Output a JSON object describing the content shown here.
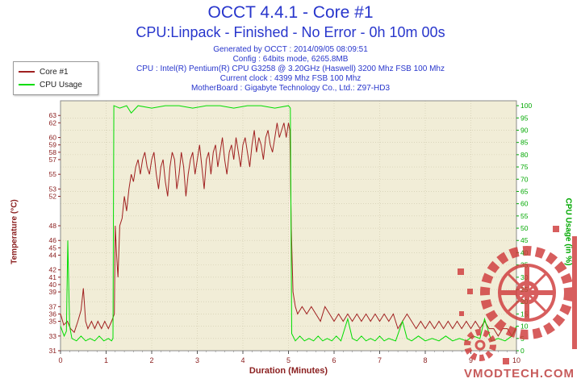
{
  "header": {
    "title": "OCCT 4.4.1 - Core #1",
    "subtitle": "CPU:Linpack - Finished - No Error - 0h 10m 00s",
    "info_lines": [
      "Generated by OCCT : 2014/09/05 08:09:51",
      "Config : 64bits mode, 6265.8MB",
      "CPU : Intel(R) Pentium(R) CPU G3258 @ 3.20GHz (Haswell) 3200 Mhz FSB 100 Mhz",
      "Current clock : 4399 Mhz FSB 100 Mhz",
      "MotherBoard : Gigabyte Technology Co., Ltd.: Z97-HD3"
    ]
  },
  "legend": [
    {
      "label": "Core #1",
      "color": "#a02020"
    },
    {
      "label": "CPU Usage",
      "color": "#00dd00"
    }
  ],
  "watermark": "VMODTECH.COM",
  "colors": {
    "title": "#2836cc",
    "watermark": "#c75b5b",
    "logo": "#cf3b3b"
  },
  "chart_data": {
    "type": "line",
    "title": "OCCT 4.4.1 - Core #1",
    "xlabel": "Duration (Minutes)",
    "ylabel_left": "Temperature (°C)",
    "ylabel_right": "CPU Usage (in %)",
    "plot_bg": "#f1edd7",
    "grid_color": "#cdc7ab",
    "x_range": [
      0,
      10
    ],
    "x_ticks": [
      0,
      1,
      2,
      3,
      4,
      5,
      6,
      7,
      8,
      9,
      10
    ],
    "x_color": "#8b2020",
    "left_axis": {
      "min": 31,
      "max": 65,
      "color": "#8b2020",
      "ticks": [
        31,
        33,
        35,
        36,
        37,
        39,
        40,
        41,
        42,
        44,
        45,
        46,
        48,
        52,
        53,
        55,
        57,
        58,
        59,
        60,
        62,
        63
      ]
    },
    "right_axis": {
      "min": 0,
      "max": 102,
      "color": "#00a800",
      "ticks": [
        0,
        5,
        10,
        15,
        20,
        25,
        30,
        35,
        40,
        45,
        50,
        55,
        60,
        65,
        70,
        75,
        80,
        85,
        90,
        95,
        100
      ]
    },
    "series": [
      {
        "name": "Core #1",
        "axis": "left",
        "color": "#a02020",
        "points": [
          [
            0,
            36
          ],
          [
            0.07,
            34.5
          ],
          [
            0.15,
            35
          ],
          [
            0.22,
            34
          ],
          [
            0.3,
            33.5
          ],
          [
            0.38,
            35
          ],
          [
            0.45,
            36.5
          ],
          [
            0.5,
            39.5
          ],
          [
            0.55,
            35
          ],
          [
            0.6,
            34
          ],
          [
            0.68,
            35
          ],
          [
            0.75,
            34
          ],
          [
            0.82,
            35
          ],
          [
            0.9,
            34
          ],
          [
            0.97,
            35
          ],
          [
            1.05,
            34
          ],
          [
            1.12,
            35
          ],
          [
            1.18,
            36
          ],
          [
            1.2,
            48
          ],
          [
            1.23,
            44
          ],
          [
            1.26,
            41
          ],
          [
            1.3,
            48
          ],
          [
            1.35,
            49
          ],
          [
            1.4,
            52
          ],
          [
            1.45,
            50
          ],
          [
            1.5,
            53
          ],
          [
            1.55,
            55
          ],
          [
            1.6,
            54
          ],
          [
            1.65,
            56
          ],
          [
            1.7,
            57
          ],
          [
            1.75,
            55
          ],
          [
            1.8,
            57
          ],
          [
            1.85,
            58
          ],
          [
            1.9,
            56
          ],
          [
            1.95,
            55
          ],
          [
            2.0,
            57
          ],
          [
            2.05,
            58
          ],
          [
            2.1,
            55
          ],
          [
            2.15,
            53
          ],
          [
            2.2,
            56
          ],
          [
            2.25,
            57
          ],
          [
            2.3,
            54
          ],
          [
            2.35,
            52
          ],
          [
            2.4,
            56
          ],
          [
            2.45,
            58
          ],
          [
            2.5,
            57
          ],
          [
            2.55,
            53
          ],
          [
            2.6,
            55
          ],
          [
            2.65,
            58
          ],
          [
            2.7,
            56
          ],
          [
            2.75,
            52
          ],
          [
            2.8,
            55
          ],
          [
            2.85,
            57
          ],
          [
            2.9,
            58
          ],
          [
            2.95,
            55
          ],
          [
            3.0,
            57
          ],
          [
            3.05,
            59
          ],
          [
            3.1,
            56
          ],
          [
            3.15,
            53
          ],
          [
            3.2,
            57
          ],
          [
            3.25,
            58
          ],
          [
            3.3,
            55
          ],
          [
            3.35,
            58
          ],
          [
            3.4,
            59
          ],
          [
            3.45,
            56
          ],
          [
            3.5,
            58
          ],
          [
            3.55,
            60
          ],
          [
            3.6,
            57
          ],
          [
            3.65,
            55
          ],
          [
            3.7,
            58
          ],
          [
            3.75,
            59
          ],
          [
            3.8,
            57
          ],
          [
            3.85,
            60
          ],
          [
            3.9,
            58
          ],
          [
            3.95,
            56
          ],
          [
            4.0,
            59
          ],
          [
            4.05,
            60
          ],
          [
            4.1,
            58
          ],
          [
            4.15,
            56
          ],
          [
            4.2,
            59
          ],
          [
            4.25,
            61
          ],
          [
            4.3,
            58
          ],
          [
            4.35,
            60
          ],
          [
            4.4,
            59
          ],
          [
            4.45,
            57
          ],
          [
            4.5,
            60
          ],
          [
            4.55,
            61
          ],
          [
            4.6,
            59
          ],
          [
            4.65,
            58
          ],
          [
            4.7,
            60
          ],
          [
            4.75,
            62
          ],
          [
            4.8,
            60
          ],
          [
            4.85,
            61
          ],
          [
            4.9,
            62
          ],
          [
            4.95,
            60
          ],
          [
            5.0,
            62
          ],
          [
            5.03,
            61
          ],
          [
            5.06,
            48
          ],
          [
            5.1,
            39
          ],
          [
            5.15,
            37
          ],
          [
            5.2,
            36
          ],
          [
            5.3,
            37
          ],
          [
            5.4,
            36
          ],
          [
            5.5,
            37
          ],
          [
            5.6,
            36
          ],
          [
            5.7,
            35
          ],
          [
            5.8,
            37
          ],
          [
            5.9,
            36
          ],
          [
            6.0,
            35
          ],
          [
            6.1,
            36
          ],
          [
            6.2,
            35
          ],
          [
            6.3,
            36
          ],
          [
            6.4,
            35
          ],
          [
            6.5,
            36
          ],
          [
            6.6,
            35
          ],
          [
            6.7,
            36
          ],
          [
            6.8,
            35
          ],
          [
            6.9,
            36
          ],
          [
            7.0,
            35
          ],
          [
            7.1,
            36
          ],
          [
            7.2,
            35
          ],
          [
            7.3,
            36
          ],
          [
            7.4,
            34
          ],
          [
            7.5,
            35
          ],
          [
            7.6,
            36
          ],
          [
            7.7,
            35
          ],
          [
            7.8,
            34
          ],
          [
            7.9,
            35
          ],
          [
            8.0,
            34
          ],
          [
            8.1,
            35
          ],
          [
            8.2,
            34
          ],
          [
            8.3,
            35
          ],
          [
            8.4,
            34
          ],
          [
            8.5,
            35
          ],
          [
            8.6,
            34
          ],
          [
            8.7,
            35
          ],
          [
            8.8,
            34
          ],
          [
            8.9,
            35
          ],
          [
            9.0,
            34
          ],
          [
            9.1,
            35
          ],
          [
            9.2,
            34
          ],
          [
            9.3,
            35
          ],
          [
            9.4,
            34
          ],
          [
            9.5,
            34
          ],
          [
            9.6,
            33
          ],
          [
            9.7,
            34
          ],
          [
            9.8,
            34
          ],
          [
            9.9,
            33
          ],
          [
            10,
            34
          ]
        ]
      },
      {
        "name": "CPU Usage",
        "axis": "right",
        "color": "#00dd00",
        "points": [
          [
            0,
            10
          ],
          [
            0.08,
            6
          ],
          [
            0.13,
            8
          ],
          [
            0.16,
            45
          ],
          [
            0.2,
            10
          ],
          [
            0.25,
            5
          ],
          [
            0.35,
            4
          ],
          [
            0.45,
            6
          ],
          [
            0.55,
            4
          ],
          [
            0.65,
            5
          ],
          [
            0.75,
            4
          ],
          [
            0.85,
            6
          ],
          [
            0.95,
            4
          ],
          [
            1.05,
            5
          ],
          [
            1.12,
            4
          ],
          [
            1.15,
            5
          ],
          [
            1.17,
            100
          ],
          [
            1.3,
            99
          ],
          [
            1.45,
            100
          ],
          [
            1.55,
            97
          ],
          [
            1.7,
            100
          ],
          [
            2.0,
            99
          ],
          [
            2.3,
            100
          ],
          [
            2.6,
            100
          ],
          [
            2.9,
            99
          ],
          [
            3.2,
            100
          ],
          [
            3.5,
            100
          ],
          [
            3.8,
            99
          ],
          [
            4.1,
            100
          ],
          [
            4.4,
            100
          ],
          [
            4.7,
            99
          ],
          [
            5.0,
            100
          ],
          [
            5.04,
            99
          ],
          [
            5.07,
            7
          ],
          [
            5.15,
            4
          ],
          [
            5.25,
            6
          ],
          [
            5.35,
            4
          ],
          [
            5.45,
            5
          ],
          [
            5.55,
            4
          ],
          [
            5.65,
            6
          ],
          [
            5.75,
            4
          ],
          [
            5.85,
            5
          ],
          [
            5.95,
            4
          ],
          [
            6.05,
            6
          ],
          [
            6.15,
            4
          ],
          [
            6.3,
            13
          ],
          [
            6.4,
            5
          ],
          [
            6.5,
            4
          ],
          [
            6.6,
            6
          ],
          [
            6.7,
            4
          ],
          [
            6.8,
            5
          ],
          [
            6.9,
            4
          ],
          [
            7.0,
            6
          ],
          [
            7.1,
            4
          ],
          [
            7.2,
            5
          ],
          [
            7.35,
            4
          ],
          [
            7.5,
            12
          ],
          [
            7.6,
            5
          ],
          [
            7.7,
            4
          ],
          [
            7.85,
            6
          ],
          [
            8.0,
            4
          ],
          [
            8.15,
            5
          ],
          [
            8.3,
            4
          ],
          [
            8.45,
            6
          ],
          [
            8.6,
            4
          ],
          [
            8.75,
            5
          ],
          [
            8.9,
            4
          ],
          [
            9.05,
            6
          ],
          [
            9.2,
            5
          ],
          [
            9.3,
            13
          ],
          [
            9.45,
            4
          ],
          [
            9.6,
            5
          ],
          [
            9.75,
            4
          ],
          [
            9.9,
            6
          ],
          [
            10,
            10
          ]
        ]
      }
    ]
  }
}
